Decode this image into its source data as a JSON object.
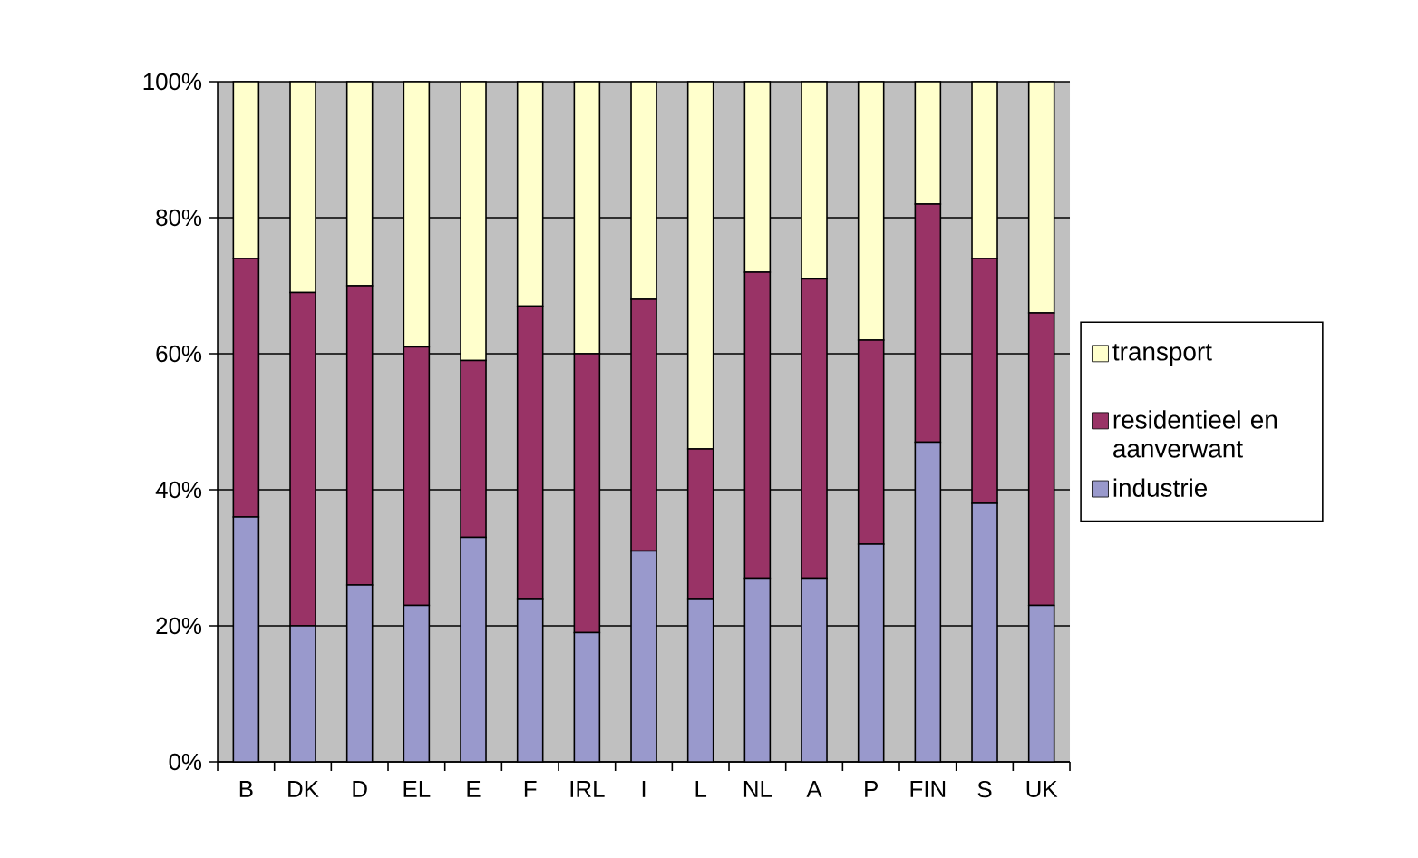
{
  "chart_data": {
    "type": "bar",
    "stacked": true,
    "categories": [
      "B",
      "DK",
      "D",
      "EL",
      "E",
      "F",
      "IRL",
      "I",
      "L",
      "NL",
      "A",
      "P",
      "FIN",
      "S",
      "UK"
    ],
    "series": [
      {
        "name": "industrie",
        "color": "#9999cc",
        "values": [
          36,
          20,
          26,
          23,
          33,
          24,
          19,
          31,
          24,
          27,
          27,
          32,
          47,
          38,
          23
        ]
      },
      {
        "name": "residentieel en aanverwant",
        "color": "#993366",
        "values": [
          38,
          49,
          44,
          38,
          26,
          43,
          41,
          37,
          22,
          45,
          44,
          30,
          35,
          36,
          43
        ]
      },
      {
        "name": "transport",
        "color": "#ffffcc",
        "values": [
          26,
          31,
          30,
          39,
          41,
          33,
          40,
          32,
          54,
          28,
          29,
          38,
          18,
          26,
          34
        ]
      }
    ],
    "ylim": [
      0,
      100
    ],
    "yticks": [
      {
        "value": 0,
        "label": "0%"
      },
      {
        "value": 20,
        "label": "20%"
      },
      {
        "value": 40,
        "label": "40%"
      },
      {
        "value": 60,
        "label": "60%"
      },
      {
        "value": 80,
        "label": "80%"
      },
      {
        "value": 100,
        "label": "100%"
      }
    ],
    "grid": "y",
    "legend": "right"
  }
}
